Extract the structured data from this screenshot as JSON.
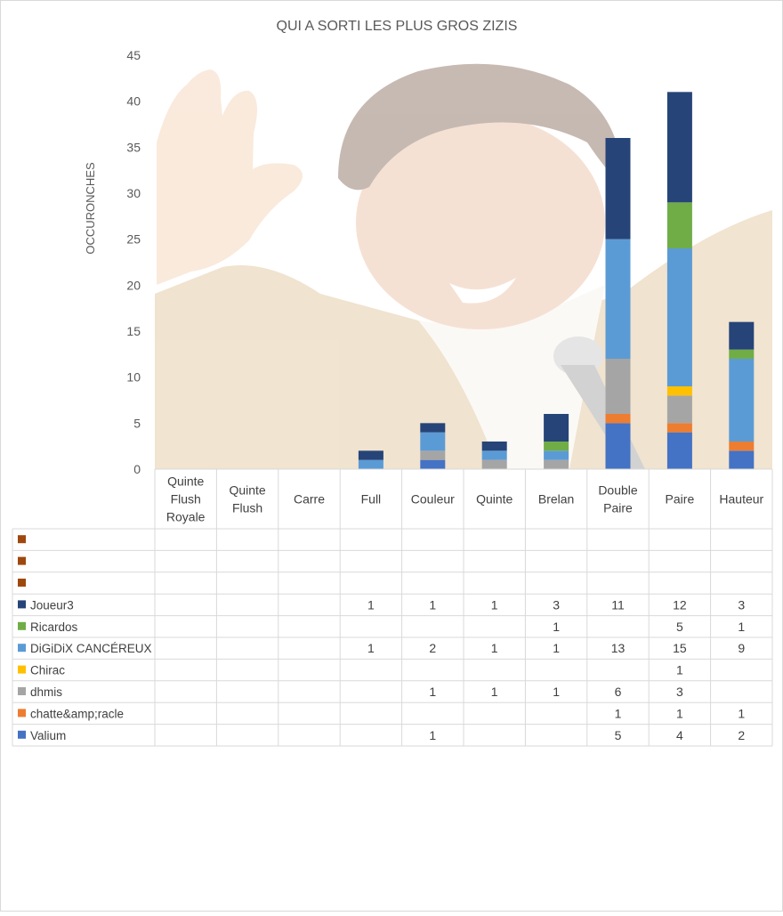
{
  "chart_data": {
    "type": "bar",
    "stacked": true,
    "title": "QUI A SORTI LES PLUS GROS ZIZIS",
    "ylabel": "OCCURONCHES",
    "xlabel": "",
    "ylim": [
      0,
      45
    ],
    "yticks": [
      "0",
      "5",
      "10",
      "15",
      "20",
      "25",
      "30",
      "35",
      "40",
      "45"
    ],
    "categories": [
      [
        "Quinte",
        "Flush",
        "Royale"
      ],
      [
        "Quinte",
        "Flush"
      ],
      [
        "Carre"
      ],
      [
        "Full"
      ],
      [
        "Couleur"
      ],
      [
        "Quinte"
      ],
      [
        "Brelan"
      ],
      [
        "Double",
        "Paire"
      ],
      [
        "Paire"
      ],
      [
        "Hauteur"
      ]
    ],
    "series": [
      {
        "name": "Valium",
        "color": "#4472c4",
        "values": [
          null,
          null,
          null,
          null,
          1,
          null,
          null,
          5,
          4,
          2
        ]
      },
      {
        "name": "chatte&amp;racle",
        "color": "#ed7d31",
        "values": [
          null,
          null,
          null,
          null,
          null,
          null,
          null,
          1,
          1,
          1
        ]
      },
      {
        "name": "dhmis",
        "color": "#a5a5a5",
        "values": [
          null,
          null,
          null,
          null,
          1,
          1,
          1,
          6,
          3,
          null
        ]
      },
      {
        "name": "Chirac",
        "color": "#ffc000",
        "values": [
          null,
          null,
          null,
          null,
          null,
          null,
          null,
          null,
          1,
          null
        ]
      },
      {
        "name": "DiGiDiX CANCÉREUX",
        "color": "#5b9bd5",
        "values": [
          null,
          null,
          null,
          1,
          2,
          1,
          1,
          13,
          15,
          9
        ]
      },
      {
        "name": "Ricardos",
        "color": "#70ad47",
        "values": [
          null,
          null,
          null,
          null,
          null,
          null,
          1,
          null,
          5,
          1
        ]
      },
      {
        "name": "Joueur3",
        "color": "#264478",
        "values": [
          null,
          null,
          null,
          1,
          1,
          1,
          3,
          11,
          12,
          3
        ]
      },
      {
        "name": "",
        "color": "#9e480e",
        "values": [
          null,
          null,
          null,
          null,
          null,
          null,
          null,
          null,
          null,
          null
        ]
      },
      {
        "name": "",
        "color": "#636363",
        "values": [
          null,
          null,
          null,
          null,
          null,
          null,
          null,
          null,
          null,
          null
        ]
      },
      {
        "name": "",
        "color": "#997300",
        "values": [
          null,
          null,
          null,
          null,
          null,
          null,
          null,
          null,
          null,
          null
        ]
      }
    ],
    "table_row_order": [
      "",
      "",
      "",
      "Joueur3",
      "Ricardos",
      "DiGiDiX CANCÉREUX",
      "Chirac",
      "dhmis",
      "chatte&amp;racle",
      "Valium"
    ],
    "legend": "data-table",
    "grid": false,
    "background_image": "laughing-man-with-microphone"
  }
}
